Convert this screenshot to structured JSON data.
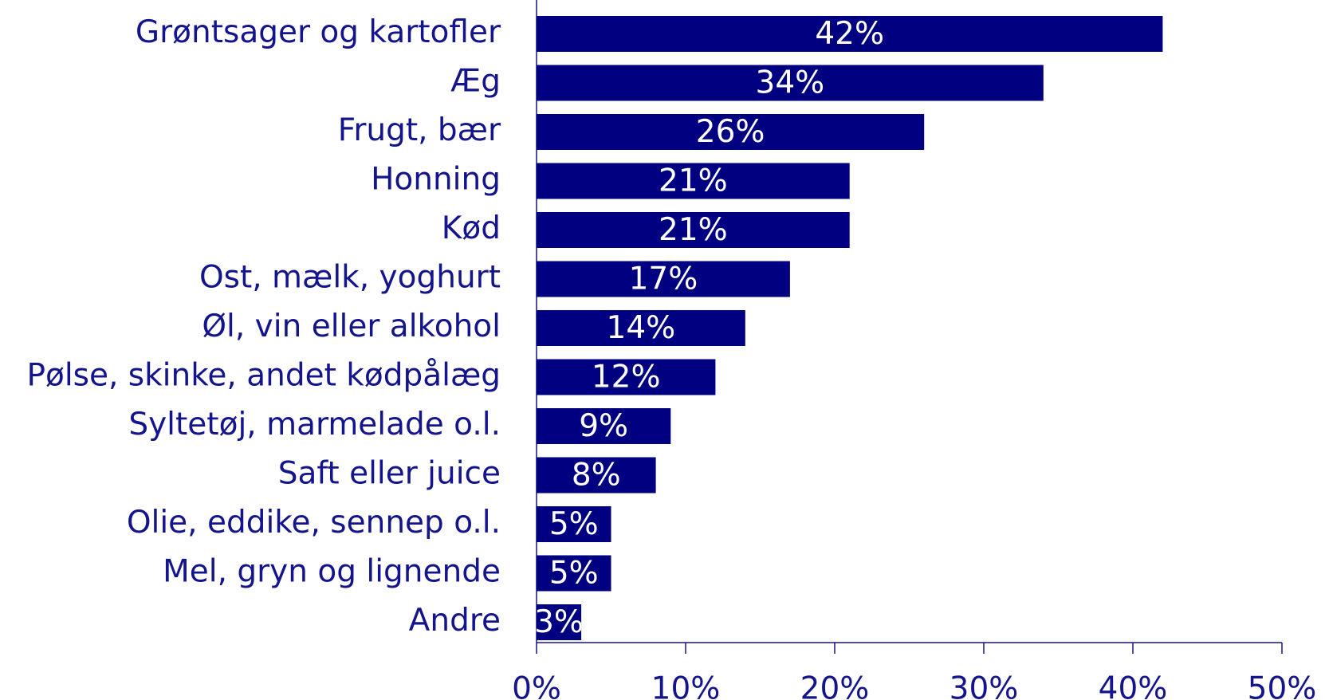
{
  "chart_data": {
    "type": "bar",
    "orientation": "horizontal",
    "categories": [
      "Grøntsager og kartofler",
      "Æg",
      "Frugt, bær",
      "Honning",
      "Kød",
      "Ost, mælk, yoghurt",
      "Øl, vin eller alkohol",
      "Pølse, skinke, andet kødpålæg",
      "Syltetøj, marmelade o.l.",
      "Saft eller juice",
      "Olie, eddike, sennep o.l.",
      "Mel, gryn og lignende",
      "Andre"
    ],
    "values": [
      42,
      34,
      26,
      21,
      21,
      17,
      14,
      12,
      9,
      8,
      5,
      5,
      3
    ],
    "value_labels": [
      "42%",
      "34%",
      "26%",
      "21%",
      "21%",
      "17%",
      "14%",
      "12%",
      "9%",
      "8%",
      "5%",
      "5%",
      "3%"
    ],
    "color": "#000080",
    "xlim": [
      0,
      50
    ],
    "xticks": [
      {
        "value": 0,
        "label": "0%"
      },
      {
        "value": 10,
        "label": "10%"
      },
      {
        "value": 20,
        "label": "20%"
      },
      {
        "value": 30,
        "label": "30%"
      },
      {
        "value": 40,
        "label": "40%"
      },
      {
        "value": 50,
        "label": "50%"
      }
    ]
  }
}
